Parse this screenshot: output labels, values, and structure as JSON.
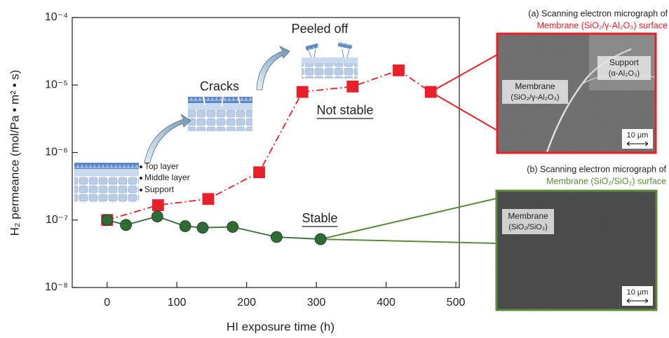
{
  "chart_data": {
    "type": "line",
    "log_y": true,
    "xlabel": "HI exposure time (h)",
    "ylabel": "H₂ permeance (mol/Pa • m² • s)",
    "xlim": [
      -50,
      505
    ],
    "ylim": [
      1e-08,
      0.0001
    ],
    "xticks": [
      0,
      100,
      200,
      300,
      400,
      500
    ],
    "yticks": [
      {
        "value": 1e-08,
        "label": "10⁻⁸"
      },
      {
        "value": 1e-07,
        "label": "10⁻⁷"
      },
      {
        "value": 1e-06,
        "label": "10⁻⁶"
      },
      {
        "value": 1e-05,
        "label": "10⁻⁵"
      },
      {
        "value": 0.0001,
        "label": "10⁻⁴"
      }
    ],
    "series": [
      {
        "name": "Not stable",
        "color": "#e8202a",
        "marker": "square",
        "line_style": "dashdot",
        "x": [
          0,
          73,
          145,
          218,
          280,
          352,
          418,
          464
        ],
        "values": [
          1e-07,
          1.66e-07,
          2.05e-07,
          5.1e-07,
          7.9e-06,
          9.5e-06,
          1.65e-05,
          7.9e-06
        ]
      },
      {
        "name": "Stable",
        "color": "#2f6b35",
        "marker": "circle",
        "line_style": "solid",
        "x": [
          0,
          27,
          72,
          112,
          137,
          180,
          243,
          306
        ],
        "values": [
          1e-07,
          8.45e-08,
          1.13e-07,
          8.1e-08,
          7.7e-08,
          7.9e-08,
          5.6e-08,
          5.2e-08
        ]
      }
    ],
    "annotations": [
      "Cracks",
      "Peeled off"
    ]
  },
  "illustration": {
    "layers": [
      "Top layer",
      "Middle layer",
      "Support"
    ]
  },
  "panels": [
    {
      "caption": "(a) Scanning electron micrograph of",
      "subtitle": "Membrane (SiO₂/γ-Al₂O₃) surface",
      "color": "#e8202a",
      "labels": [
        [
          "Support",
          "(α-Al₂O₃)"
        ],
        [
          "Membrane",
          "(SiO₂/γ-Al₂O₃)"
        ]
      ],
      "scale": "10 μm"
    },
    {
      "caption": "(b) Scanning electron micrograph of",
      "subtitle": "Membrane (SiO₂/SiO₂) surface",
      "color": "#5a8a3a",
      "labels": [
        [
          "Membrane",
          "(SiO₂/SiO₂)"
        ]
      ],
      "scale": "10 μm"
    }
  ]
}
